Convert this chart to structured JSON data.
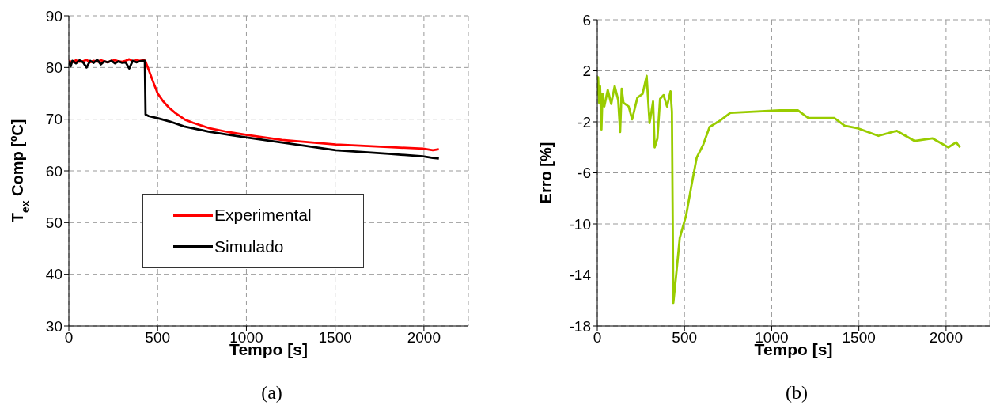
{
  "chart_data": [
    {
      "type": "line",
      "xlabel": "Tempo [s]",
      "ylabel": "T$_{ex}$ Comp [ºC]",
      "annotations": [
        "(a)"
      ],
      "xlim": [
        0,
        2250
      ],
      "xticks": [
        0,
        500,
        1000,
        1500,
        2000
      ],
      "ylim": [
        30,
        90
      ],
      "yticks": [
        30,
        40,
        50,
        60,
        70,
        80,
        90
      ],
      "grid": true,
      "legend": "center",
      "line_style": "solid",
      "marker": "none",
      "series": [
        {
          "name": "Experimental",
          "color": "#ff0000",
          "x": [
            0,
            20,
            40,
            60,
            80,
            100,
            120,
            140,
            160,
            180,
            200,
            220,
            240,
            260,
            280,
            300,
            320,
            340,
            360,
            380,
            400,
            420,
            430,
            450,
            475,
            500,
            530,
            565,
            600,
            655,
            700,
            787,
            900,
            1011,
            1200,
            1503,
            1800,
            1995,
            2050,
            2084
          ],
          "values": [
            81.3,
            81.0,
            81.4,
            81.1,
            81.2,
            81.5,
            81.0,
            81.3,
            81.1,
            81.4,
            81.2,
            81.0,
            81.3,
            81.4,
            81.2,
            81.1,
            81.3,
            81.6,
            81.2,
            81.4,
            81.3,
            81.4,
            81.3,
            79.5,
            77.2,
            75.0,
            73.5,
            72.2,
            71.2,
            69.9,
            69.3,
            68.3,
            67.5,
            66.9,
            66.0,
            65.1,
            64.6,
            64.3,
            64.0,
            64.2
          ]
        },
        {
          "name": "Simulado",
          "color": "#000000",
          "x": [
            0,
            10,
            20,
            40,
            60,
            80,
            100,
            120,
            140,
            160,
            180,
            200,
            220,
            240,
            260,
            280,
            300,
            320,
            340,
            360,
            380,
            400,
            420,
            428,
            432,
            450,
            500,
            565,
            650,
            787,
            900,
            1011,
            1200,
            1503,
            1800,
            1995,
            2050,
            2084
          ],
          "values": [
            81.2,
            80.2,
            81.3,
            80.8,
            81.4,
            81.0,
            80.0,
            81.3,
            80.9,
            81.5,
            80.6,
            81.2,
            81.0,
            81.3,
            80.8,
            81.2,
            80.9,
            81.0,
            79.8,
            81.3,
            81.0,
            81.2,
            81.3,
            81.3,
            70.9,
            70.6,
            70.2,
            69.6,
            68.6,
            67.6,
            67.0,
            66.4,
            65.5,
            64.0,
            63.3,
            62.8,
            62.5,
            62.4
          ]
        }
      ]
    },
    {
      "type": "line",
      "xlabel": "Tempo [s]",
      "ylabel": "Erro [%]",
      "annotations": [
        "(b)"
      ],
      "xlim": [
        0,
        2250
      ],
      "xticks": [
        0,
        500,
        1000,
        1500,
        2000
      ],
      "ylim": [
        -18,
        6
      ],
      "yticks": [
        -18,
        -14,
        -10,
        -6,
        -2,
        2,
        6
      ],
      "grid": true,
      "line_style": "solid",
      "marker": "none",
      "series": [
        {
          "color": "#99cc00",
          "x": [
            0,
            5,
            10,
            16,
            24,
            30,
            40,
            60,
            80,
            100,
            120,
            131,
            140,
            150,
            180,
            200,
            230,
            260,
            283,
            300,
            320,
            329,
            345,
            360,
            380,
            400,
            420,
            428,
            436,
            451,
            473,
            510,
            540,
            570,
            607,
            644,
            704,
            763,
            897,
            1046,
            1150,
            1210,
            1359,
            1418,
            1493,
            1612,
            1716,
            1820,
            1923,
            2013,
            2058,
            2080
          ],
          "values": [
            0.1,
            1.5,
            -0.5,
            0.8,
            -2.6,
            0.2,
            -0.8,
            0.5,
            -0.6,
            0.8,
            -0.3,
            -2.8,
            0.6,
            -0.5,
            -0.8,
            -1.8,
            -0.1,
            0.2,
            1.6,
            -2.1,
            -0.4,
            -4.0,
            -3.3,
            -0.2,
            0.1,
            -0.8,
            0.4,
            -1.2,
            -16.2,
            -14.2,
            -11.1,
            -9.3,
            -7.0,
            -4.8,
            -3.8,
            -2.4,
            -1.9,
            -1.3,
            -1.2,
            -1.1,
            -1.1,
            -1.7,
            -1.7,
            -2.3,
            -2.5,
            -3.1,
            -2.7,
            -3.5,
            -3.3,
            -4.0,
            -3.6,
            -4.0
          ]
        }
      ]
    }
  ]
}
